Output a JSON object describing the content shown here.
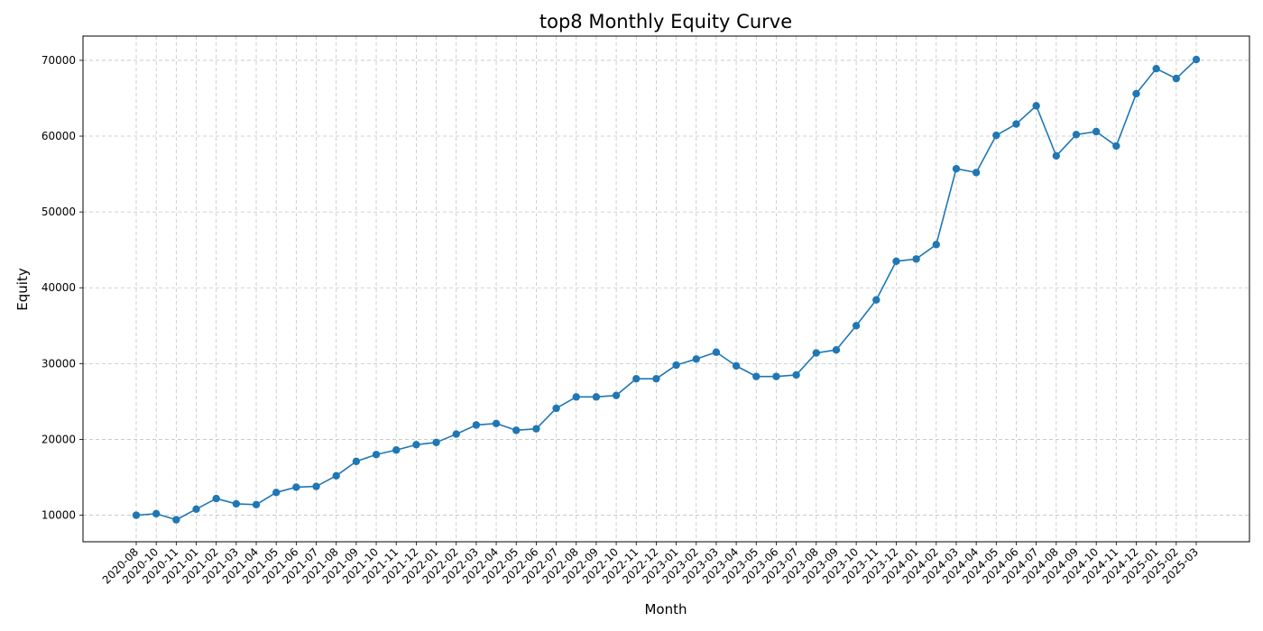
{
  "chart_data": {
    "type": "line",
    "title": "top8 Monthly Equity Curve",
    "xlabel": "Month",
    "ylabel": "Equity",
    "grid": true,
    "grid_style": "dashed",
    "markers": "circle",
    "line_color": "#1f77b4",
    "ylim": [
      6500,
      73200
    ],
    "yticks": [
      10000,
      20000,
      30000,
      40000,
      50000,
      60000,
      70000
    ],
    "series": [
      {
        "x": [
          "2020-08",
          "2020-10",
          "2020-11",
          "2021-01",
          "2021-02",
          "2021-03",
          "2021-04",
          "2021-05",
          "2021-06",
          "2021-07",
          "2021-08",
          "2021-09",
          "2021-10",
          "2021-11",
          "2021-12",
          "2022-01",
          "2022-02",
          "2022-03",
          "2022-04",
          "2022-05",
          "2022-06",
          "2022-07",
          "2022-08",
          "2022-09",
          "2022-10",
          "2022-11",
          "2022-12",
          "2023-01",
          "2023-02",
          "2023-03",
          "2023-04",
          "2023-05",
          "2023-06",
          "2023-07",
          "2023-08",
          "2023-09",
          "2023-10",
          "2023-11",
          "2023-12",
          "2024-01",
          "2024-02",
          "2024-03",
          "2024-04",
          "2024-05",
          "2024-06",
          "2024-07",
          "2024-08",
          "2024-09",
          "2024-10",
          "2024-11",
          "2024-12",
          "2025-01",
          "2025-02",
          "2025-03"
        ],
        "values": [
          10000,
          10200,
          9400,
          10800,
          12200,
          11500,
          11400,
          13000,
          13700,
          13800,
          15200,
          17100,
          18000,
          18600,
          19300,
          19600,
          20700,
          21900,
          22100,
          21200,
          21400,
          24100,
          25600,
          25600,
          25800,
          28000,
          28000,
          29800,
          30600,
          31500,
          29700,
          28300,
          28300,
          28500,
          31400,
          31800,
          35000,
          38400,
          43500,
          43800,
          45700,
          55700,
          55200,
          60100,
          61600,
          64000,
          57400,
          60200,
          60600,
          58700,
          65600,
          68900,
          67600,
          70100
        ]
      }
    ]
  }
}
